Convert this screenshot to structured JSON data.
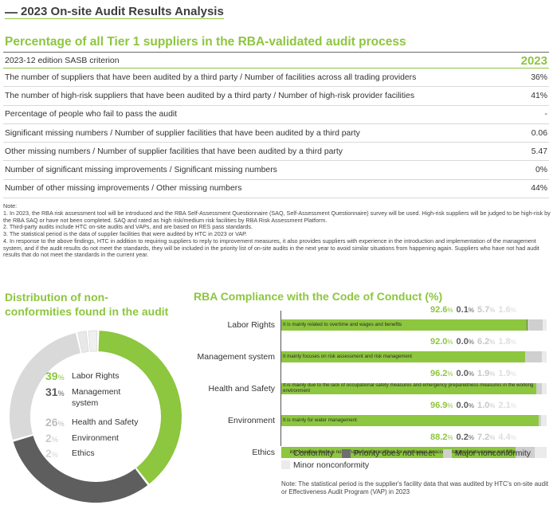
{
  "header": {
    "title": "2023 On-site Audit Results Analysis"
  },
  "section1": {
    "heading": "Percentage of all Tier 1 suppliers in the RBA-validated audit process",
    "criterion_label": "2023-12 edition SASB criterion",
    "year": "2023",
    "rows": [
      {
        "label": "The number of suppliers that have been audited by a third party / Number of facilities across all trading providers",
        "value": "36%"
      },
      {
        "label": "The number of high-risk suppliers that have been audited by a third party / Number of high-risk provider facilities",
        "value": "41%"
      },
      {
        "label": "Percentage of people who fail to pass the audit",
        "value": "-"
      },
      {
        "label": "Significant missing numbers / Number of supplier facilities that have been audited by a third party",
        "value": "0.06"
      },
      {
        "label": "Other missing numbers / Number of supplier facilities that have been audited by a third party",
        "value": "5.47"
      },
      {
        "label": "Number of significant missing improvements / Significant missing numbers",
        "value": "0%"
      },
      {
        "label": "Number of other missing improvements / Other missing numbers",
        "value": "44%"
      }
    ]
  },
  "notes": {
    "title": "Note:",
    "items": [
      "1. In 2023, the RBA risk assessment tool will be introduced and the RBA Self-Assessment Questionnaire (SAQ, Self-Assessment Questionnaire) survey will be used. High-risk suppliers will be judged to be high-risk by the RBA SAQ or have not been completed. SAQ and rated as high risk/medium risk facilities by RBA Risk Assessment Platform.",
      "2. Third-party audits include HTC on-site audits and VAPs, and are based on RES pass standards.",
      "3. The statistical period is the data of supplier facilities that were audited by HTC in 2023 or VAP.",
      "4. In response to the above findings, HTC in addition to requiring suppliers to reply to improvement measures, it also provides suppliers with experience in the introduction and implementation of the management system, and if the audit results do not meet the standards, they will be included in the priority list of on-site audits in the next year to avoid similar situations from happening again. Suppliers who have not had audit results that do not meet the standards in the current year."
    ]
  },
  "distribution": {
    "title_line1": "Distribution of non-",
    "title_line2": "conformities found in the audit",
    "pct_sign": "%",
    "items": [
      {
        "pct": "39",
        "label": "Labor Rights",
        "color": "#8dc63f"
      },
      {
        "pct": "31",
        "label": "Management system",
        "color": "#5e5e5e"
      },
      {
        "pct": "26",
        "label": "Health and Safety",
        "color": "#d9d9d9"
      },
      {
        "pct": "2",
        "label": "Environment",
        "color": "#e8e8e8"
      },
      {
        "pct": "2",
        "label": "Ethics",
        "color": "#f0f0f0"
      }
    ]
  },
  "chart_data": [
    {
      "type": "pie",
      "title": "Distribution of non-conformities found in the audit",
      "categories": [
        "Labor Rights",
        "Management system",
        "Health and Safety",
        "Environment",
        "Ethics"
      ],
      "values": [
        39,
        31,
        26,
        2,
        2
      ],
      "unit": "%"
    },
    {
      "type": "bar",
      "stacked": true,
      "orientation": "horizontal",
      "title": "RBA Compliance with the Code of Conduct (%)",
      "categories": [
        "Labor Rights",
        "Management system",
        "Health and Safety",
        "Environment",
        "Ethics"
      ],
      "series": [
        {
          "name": "Conformity",
          "values": [
            92.6,
            92.0,
            96.2,
            96.9,
            88.2
          ],
          "color": "#8dc63f"
        },
        {
          "name": "Priority does not meet",
          "values": [
            0.1,
            0.0,
            0.0,
            0.0,
            0.2
          ],
          "color": "#6e6e6e"
        },
        {
          "name": "Major nonconformity",
          "values": [
            5.7,
            6.2,
            1.9,
            1.0,
            7.2
          ],
          "color": "#cfcfcf"
        },
        {
          "name": "Minor nonconformity",
          "values": [
            1.6,
            1.8,
            1.9,
            2.1,
            4.4
          ],
          "color": "#ebebeb"
        }
      ],
      "value_labels": [
        [
          "92.6",
          "0.1",
          "5.7",
          "1.6"
        ],
        [
          "92.0",
          "0.0",
          "6.2",
          "1.8"
        ],
        [
          "96.2",
          "0.0",
          "1.9",
          "1.9"
        ],
        [
          "96.9",
          "0.0",
          "1.0",
          "2.1"
        ],
        [
          "88.2",
          "0.2",
          "7.2",
          "4.4"
        ]
      ],
      "annotations": [
        "It is mainly related to overtime and wages and benefits",
        "It mainly focuses on risk assessment and risk management",
        "It is mainly due to the lack of occupational safety measures and emergency preparedness measures in the working environment",
        "It is mainly for water management",
        "Mainly because there is no management procedure for employees to accept inappropriate money and gifts"
      ],
      "xlim": [
        0,
        100
      ],
      "legend": "bottom"
    }
  ],
  "rba": {
    "title": "RBA Compliance with the Code of Conduct (%)",
    "pct_sign": "%",
    "legend": [
      "Conformity",
      "Priority does not meet",
      "Major nonconformity",
      "Minor nonconformity"
    ],
    "note": "Note: The statistical period is the supplier's facility data that was audited by HTC's on-site audit or Effectiveness Audit Program (VAP) in 2023"
  }
}
